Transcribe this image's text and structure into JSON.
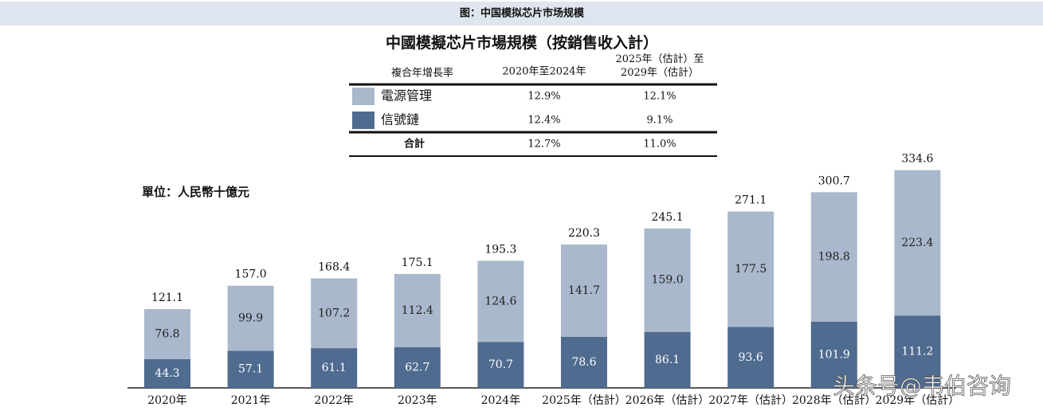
{
  "header": {
    "title": "图：中国模拟芯片市场规模"
  },
  "chart_data": {
    "type": "stacked_bar",
    "title": "中國模擬芯片市場規模（按銷售收入計）",
    "unit_label": "單位：人民幣十億元",
    "categories": [
      "2020年",
      "2021年",
      "2022年",
      "2023年",
      "2024年",
      "2025年（估計）",
      "2026年（估計）",
      "2027年（估計）",
      "2028年（估計）",
      "2029年（估計）"
    ],
    "series": [
      {
        "name": "信號鏈",
        "color": "#4f6b8f",
        "values": [
          44.3,
          57.1,
          61.1,
          62.7,
          70.7,
          78.6,
          86.1,
          93.6,
          101.9,
          111.2
        ],
        "cagr": [
          "12.4%",
          "9.1%"
        ]
      },
      {
        "name": "電源管理",
        "color": "#a9b8cc",
        "values": [
          76.8,
          99.9,
          107.2,
          112.4,
          124.6,
          141.7,
          159.0,
          177.5,
          198.8,
          223.4
        ],
        "value_labels": [
          "76.8",
          "99.9",
          "107.2",
          "112.4",
          "124.6",
          "141.7",
          "159.0",
          "177.5",
          "198.8",
          "223.4"
        ],
        "cagr": [
          "12.9%",
          "12.1%"
        ]
      }
    ],
    "totals": [
      121.1,
      157.0,
      168.4,
      175.1,
      195.3,
      220.3,
      245.1,
      271.1,
      300.7,
      334.6
    ],
    "total_labels": [
      "121.1",
      "157.0",
      "168.4",
      "175.1",
      "195.3",
      "220.3",
      "245.1",
      "271.1",
      "300.7",
      "334.6"
    ],
    "cagr_table": {
      "header": [
        "複合年增長率",
        "2020年至2024年",
        "2025年（估計）至2029年（估計）"
      ],
      "total": {
        "label": "合計",
        "values": [
          "12.7%",
          "11.0%"
        ]
      }
    }
  },
  "watermark": "头条号@韦伯咨询"
}
